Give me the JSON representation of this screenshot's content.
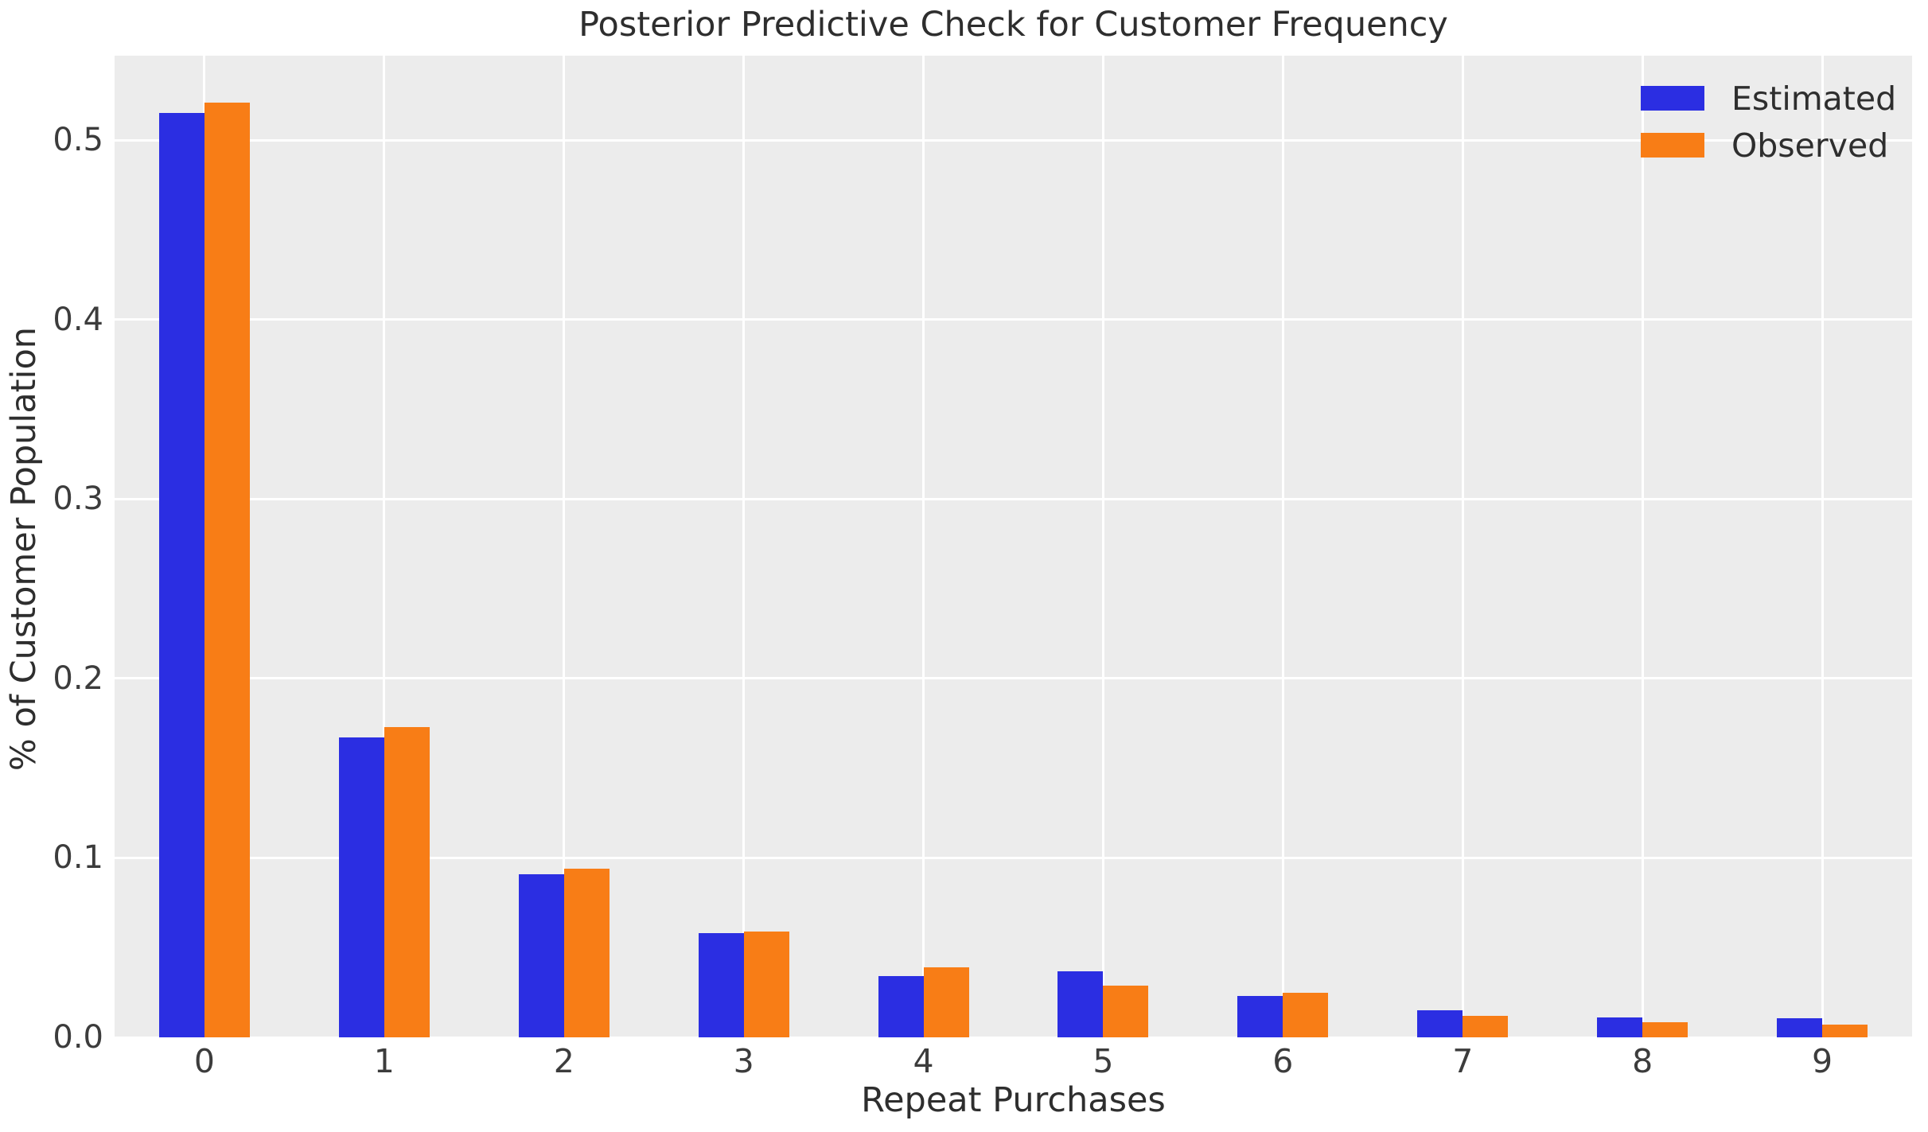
{
  "chart_data": {
    "type": "bar",
    "title": "Posterior Predictive Check for Customer Frequency",
    "xlabel": "Repeat Purchases",
    "ylabel": "% of Customer Population",
    "categories": [
      "0",
      "1",
      "2",
      "3",
      "4",
      "5",
      "6",
      "7",
      "8",
      "9"
    ],
    "series": [
      {
        "name": "Estimated",
        "color": "#2b2ee2",
        "values": [
          0.515,
          0.167,
          0.091,
          0.058,
          0.034,
          0.037,
          0.023,
          0.015,
          0.011,
          0.0105
        ]
      },
      {
        "name": "Observed",
        "color": "#f87d16",
        "values": [
          0.521,
          0.173,
          0.094,
          0.059,
          0.039,
          0.029,
          0.025,
          0.012,
          0.0085,
          0.007
        ]
      }
    ],
    "yticks": [
      0.0,
      0.1,
      0.2,
      0.3,
      0.4,
      0.5
    ],
    "ytick_labels": [
      "0.0",
      "0.1",
      "0.2",
      "0.3",
      "0.4",
      "0.5"
    ],
    "ylim": [
      0,
      0.547
    ],
    "grid": true,
    "legend_position": "upper right"
  },
  "colors": {
    "plot_background": "#ececec",
    "figure_background": "#ffffff",
    "gridline": "#ffffff",
    "text": "#2e2e2e",
    "tick_text": "#3c3c3c"
  }
}
